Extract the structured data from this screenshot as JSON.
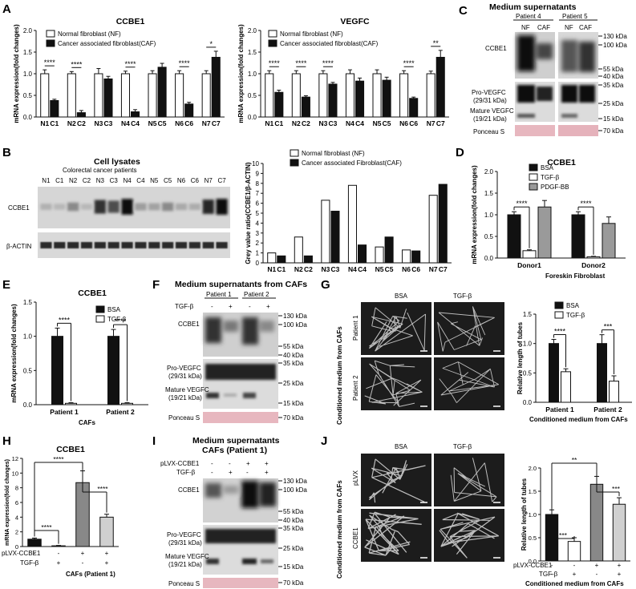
{
  "panels": [
    "A",
    "B",
    "C",
    "D",
    "E",
    "F",
    "G",
    "H",
    "I",
    "J"
  ],
  "legends": {
    "nf_caf": [
      "Normal fibroblast (NF)",
      "Cancer associated fibroblast(CAF)"
    ],
    "nf_caf_b": [
      "Normal fibroblast (NF)",
      "Cancer associated Fibroblast(CAF)"
    ],
    "bsa_tgf": [
      "BSA",
      "TGF-β"
    ],
    "bsa_tgf_pdgf": [
      "BSA",
      "TGF-β",
      "PDGF-BB"
    ]
  },
  "labels": {
    "y_mrna": "mRNA expression(fold changes)",
    "y_mrna_h": "mRNA expression(fold changes)",
    "y_grey": "Grey value ratio(CCBE1/β-ACTIN)",
    "y_tubes": "Relative length of tubes",
    "x_foreskin": "Foreskin Fibroblast",
    "x_cafs": "CAFs",
    "x_cafs_p1": "CAFs (Patient 1)",
    "x_cond": "Conditioned medium from CAFs",
    "cond_side": "Conditioned medium from CAFs",
    "cell_lysates": "Cell lysates",
    "crc_patients": "Colorectal cancer patients",
    "ccbe1": "CCBE1",
    "vegfc": "VEGFC",
    "bactin": "β-ACTIN",
    "pro_vegfc": "Pro-VEGFC",
    "pro_kda": "(29/31 kDa)",
    "mature_vegfc": "Mature VEGFC",
    "mature_kda": "(19/21 kDa)",
    "ponceau": "Ponceau S",
    "med_sup": "Medium supernatants",
    "med_sup_cafs": "Medium supernatants from CAFs",
    "med_sup_i": "Medium supernatants",
    "med_sup_i2": "CAFs (Patient 1)",
    "patient1": "Patient 1",
    "patient2": "Patient 2",
    "patient4": "Patient 4",
    "patient5": "Patient 5",
    "donor1": "Donor1",
    "donor2": "Donor2",
    "nf": "NF",
    "caf": "CAF",
    "tgf": "TGF-β",
    "plvx_ccbe1": "pLVX-CCBE1",
    "plvx": "pLVX",
    "bsa": "BSA",
    "minus": "-",
    "plus": "+"
  },
  "markers": {
    "c_top": [
      "130 kDa",
      "100 kDa",
      "55 kDa",
      "40 kDa"
    ],
    "c_mid": [
      "35 kDa",
      "25 kDa",
      "15 kDa"
    ],
    "c_pon": "70 kDa",
    "f_top": [
      "130 kDa",
      "100 kDa",
      "55 kDa",
      "40 kDa"
    ],
    "f_mid": [
      "35 kDa",
      "25 kDa",
      "15 kDa"
    ],
    "f_pon": "70 kDa"
  },
  "chart_data": [
    {
      "id": "A-left",
      "type": "bar",
      "title": "CCBE1",
      "categories": [
        "N1",
        "C1",
        "N2",
        "C2",
        "N3",
        "C3",
        "N4",
        "C4",
        "N5",
        "C5",
        "N6",
        "C6",
        "N7",
        "C7"
      ],
      "values": [
        1.0,
        0.38,
        1.0,
        0.1,
        1.0,
        0.88,
        1.0,
        0.12,
        1.0,
        1.15,
        1.0,
        0.3,
        1.0,
        1.38
      ],
      "ylabel": "mRNA expression(fold changes)",
      "ylim": [
        0,
        2.0
      ],
      "yticks": [
        "0.0",
        "0.5",
        "1.0",
        "1.5",
        "2.0"
      ],
      "significance": [
        "****",
        "****",
        "",
        "****",
        "",
        "****",
        "*"
      ]
    },
    {
      "id": "A-right",
      "type": "bar",
      "title": "VEGFC",
      "categories": [
        "N1",
        "C1",
        "N2",
        "C2",
        "N3",
        "C3",
        "N4",
        "C4",
        "N5",
        "C5",
        "N6",
        "C6",
        "N7",
        "C7"
      ],
      "values": [
        1.0,
        0.57,
        1.0,
        0.46,
        1.0,
        0.76,
        1.0,
        0.83,
        1.0,
        0.85,
        1.0,
        0.43,
        1.0,
        1.38
      ],
      "ylabel": "mRNA expression(fold changes)",
      "ylim": [
        0,
        2.0
      ],
      "yticks": [
        "0.0",
        "0.5",
        "1.0",
        "1.5",
        "2.0"
      ],
      "significance": [
        "****",
        "****",
        "****",
        "",
        "",
        "****",
        "**"
      ]
    },
    {
      "id": "B",
      "type": "bar",
      "categories": [
        "N1",
        "C1",
        "N2",
        "C2",
        "N3",
        "C3",
        "N4",
        "C4",
        "N5",
        "C5",
        "N6",
        "C6",
        "N7",
        "C7"
      ],
      "values": [
        1.0,
        0.7,
        2.6,
        0.7,
        6.3,
        5.2,
        7.8,
        1.8,
        1.6,
        2.6,
        1.3,
        1.2,
        6.8,
        7.9
      ],
      "ylabel": "Grey value ratio(CCBE1/β-ACTIN)",
      "ylim": [
        0,
        10
      ],
      "yticks": [
        "0",
        "1",
        "2",
        "3",
        "4",
        "5",
        "6",
        "7",
        "8",
        "9",
        "10"
      ]
    },
    {
      "id": "D",
      "type": "bar",
      "title": "CCBE1",
      "categories": [
        "Donor1",
        "Donor2"
      ],
      "series": [
        {
          "name": "BSA",
          "values": [
            1.0,
            1.0
          ]
        },
        {
          "name": "TGF-β",
          "values": [
            0.17,
            0.03
          ]
        },
        {
          "name": "PDGF-BB",
          "values": [
            1.18,
            0.8
          ]
        }
      ],
      "ylim": [
        0,
        2.0
      ],
      "yticks": [
        "0.0",
        "0.5",
        "1.0",
        "1.5",
        "2.0"
      ],
      "significance": [
        "****",
        "****"
      ]
    },
    {
      "id": "E",
      "type": "bar",
      "title": "CCBE1",
      "categories": [
        "Patient 1",
        "Patient 2"
      ],
      "series": [
        {
          "name": "BSA",
          "values": [
            1.0,
            1.0
          ]
        },
        {
          "name": "TGF-β",
          "values": [
            0.02,
            0.02
          ]
        }
      ],
      "ylim": [
        0,
        1.5
      ],
      "yticks": [
        "0.0",
        "0.5",
        "1.0",
        "1.5"
      ],
      "significance": [
        "****",
        "****"
      ]
    },
    {
      "id": "G",
      "type": "bar",
      "categories": [
        "Patient 1",
        "Patient 2"
      ],
      "series": [
        {
          "name": "BSA",
          "values": [
            1.0,
            1.0
          ]
        },
        {
          "name": "TGF-β",
          "values": [
            0.52,
            0.36
          ]
        }
      ],
      "ylim": [
        0,
        1.5
      ],
      "yticks": [
        "0.0",
        "0.5",
        "1.0",
        "1.5"
      ],
      "significance": [
        "****",
        "***"
      ]
    },
    {
      "id": "H",
      "type": "bar",
      "title": "CCBE1",
      "values": [
        1.0,
        0.1,
        8.7,
        4.0
      ],
      "ylim": [
        0,
        12
      ],
      "yticks": [
        "0",
        "2",
        "4",
        "6",
        "8",
        "10",
        "12"
      ],
      "rows": {
        "pLVX-CCBE1": [
          "-",
          "-",
          "+",
          "+"
        ],
        "TGF-β": [
          "-",
          "+",
          "-",
          "+"
        ]
      },
      "significance": [
        "****",
        "****",
        "****"
      ]
    },
    {
      "id": "J",
      "type": "bar",
      "values": [
        1.0,
        0.42,
        1.65,
        1.22
      ],
      "ylim": [
        0,
        2.0
      ],
      "yticks": [
        "0.0",
        "0.5",
        "1.0",
        "1.5",
        "2.0"
      ],
      "rows": {
        "pLVX-CCBE1": [
          "-",
          "-",
          "+",
          "+"
        ],
        "TGF-β": [
          "-",
          "+",
          "-",
          "+"
        ]
      },
      "significance": [
        "***",
        "**",
        "***"
      ]
    }
  ]
}
